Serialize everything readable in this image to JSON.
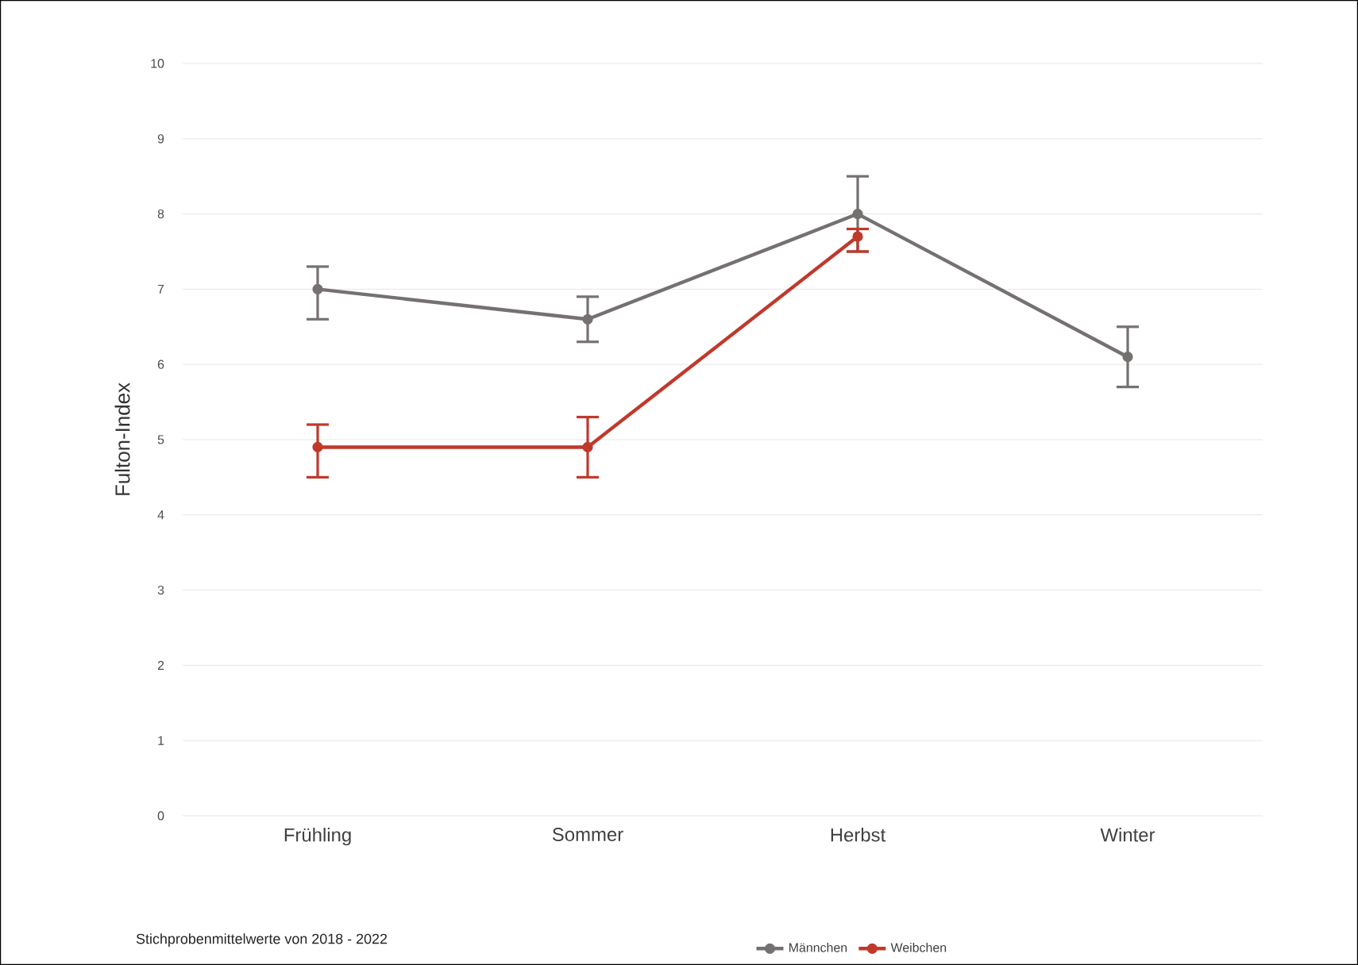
{
  "chart_data": {
    "type": "line",
    "ylabel": "Fulton-Index",
    "categories": [
      "Frühling",
      "Sommer",
      "Herbst",
      "Winter"
    ],
    "series": [
      {
        "name": "Männchen",
        "color": "#767171",
        "values": [
          7.0,
          6.6,
          8.0,
          6.1
        ],
        "errors": [
          [
            6.6,
            7.3
          ],
          [
            6.3,
            6.9
          ],
          [
            7.5,
            8.5
          ],
          [
            5.7,
            6.5
          ]
        ]
      },
      {
        "name": "Weibchen",
        "color": "#c0392b",
        "values": [
          4.9,
          4.9,
          7.7,
          null
        ],
        "errors": [
          [
            4.5,
            5.2
          ],
          [
            4.5,
            5.3
          ],
          [
            7.5,
            7.8
          ],
          null
        ]
      }
    ],
    "ylim": [
      0,
      10
    ],
    "yticks": [
      0,
      1,
      2,
      3,
      4,
      5,
      6,
      7,
      8,
      9,
      10
    ],
    "grid": "y",
    "legend": "bottom",
    "marker": "circle",
    "line_style": "solid",
    "annotations": [
      "Stichprobenmittelwerte von 2018 - 2022"
    ]
  }
}
